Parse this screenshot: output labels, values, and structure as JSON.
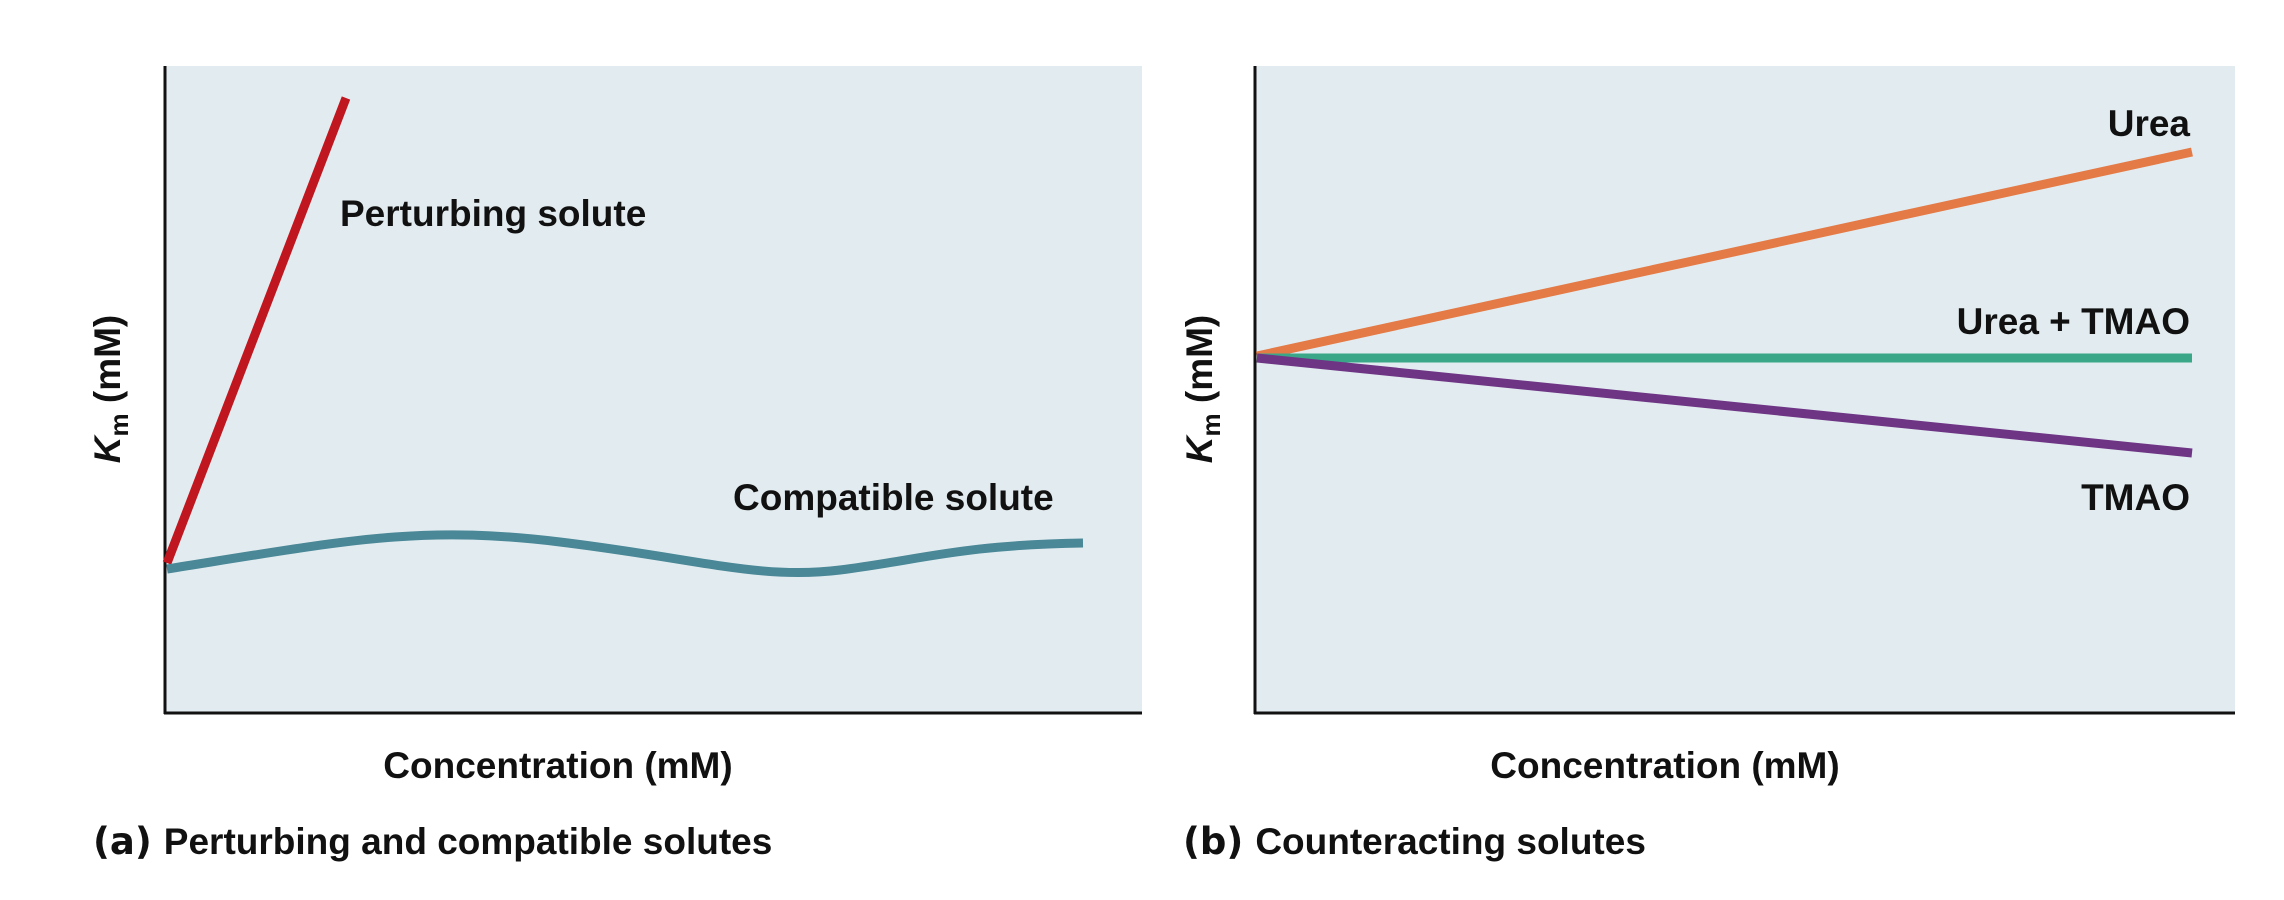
{
  "chart_data": [
    {
      "type": "line",
      "panel_tag": "(a)",
      "caption": "Perturbing and compatible solutes",
      "xlabel": "Concentration (mM)",
      "ylabel": {
        "main": "K",
        "sub": "m",
        "rest": " (mM)"
      },
      "series": [
        {
          "name": "Perturbing solute",
          "color": "#c0161f",
          "shape": "straight-line",
          "trend": "increases steeply"
        },
        {
          "name": "Compatible solute",
          "color": "#4a8797",
          "shape": "wavy-line",
          "trend": "approximately constant"
        }
      ],
      "background": "#e2ecf0",
      "grid": false,
      "ticks": false
    },
    {
      "type": "line",
      "panel_tag": "(b)",
      "caption": "Counteracting solutes",
      "xlabel": "Concentration (mM)",
      "ylabel": {
        "main": "K",
        "sub": "m",
        "rest": " (mM)"
      },
      "series": [
        {
          "name": "Urea",
          "color": "#e47a46",
          "shape": "straight-line",
          "trend": "increases"
        },
        {
          "name": "Urea + TMAO",
          "color": "#3aa888",
          "shape": "straight-line",
          "trend": "constant"
        },
        {
          "name": "TMAO",
          "color": "#6e3585",
          "shape": "straight-line",
          "trend": "decreases"
        }
      ],
      "background": "#e2ecf0",
      "grid": false,
      "ticks": false
    }
  ]
}
